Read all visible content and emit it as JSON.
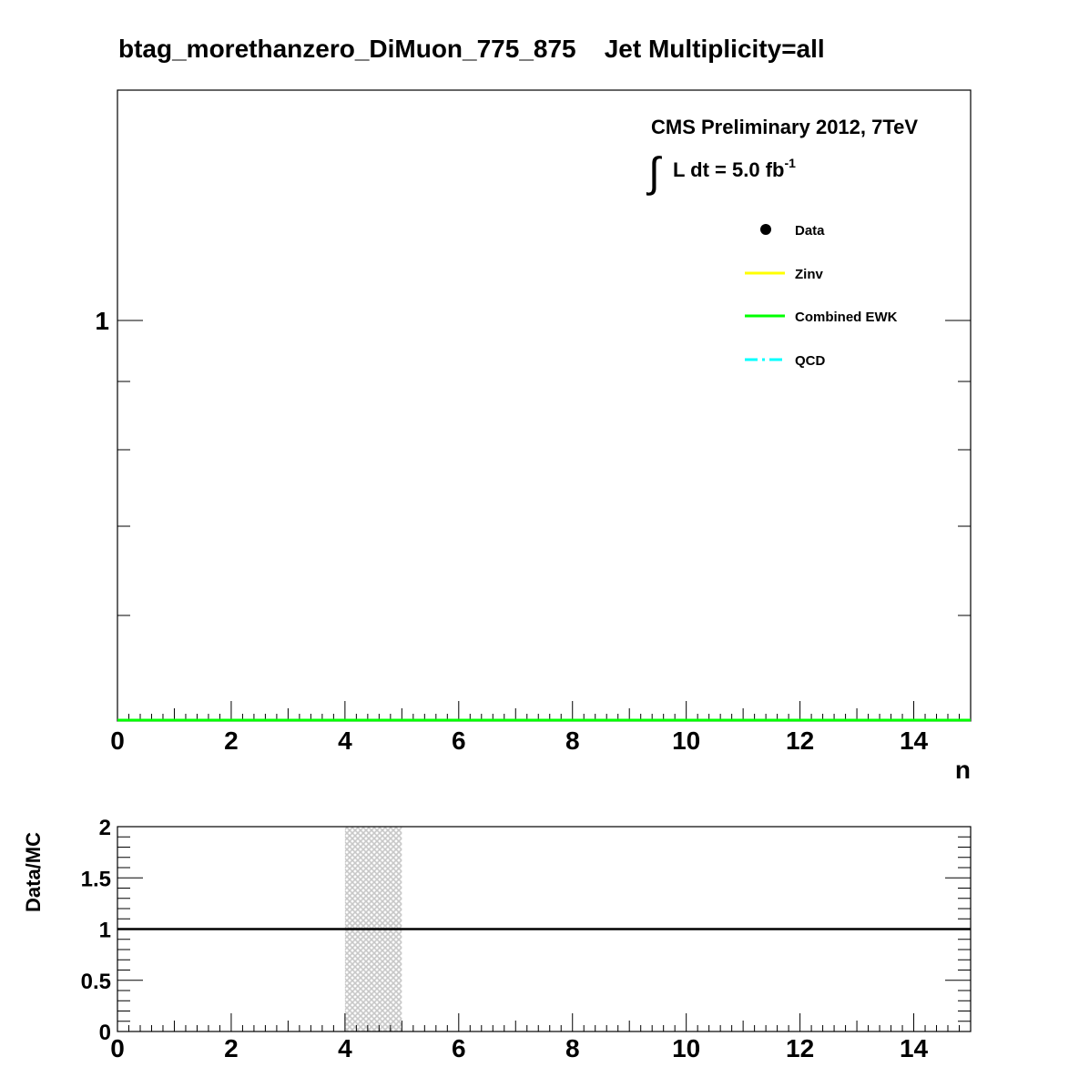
{
  "title": "btag_morethanzero_DiMuon_775_875    Jet Multiplicity=all",
  "annotation": {
    "line1": "CMS Preliminary 2012, 7TeV",
    "integral_sign": "∫",
    "lumi_prefix": "L dt = 5.0 fb",
    "lumi_superscript": "-1"
  },
  "legend": [
    {
      "label": "Data",
      "marker": "dot",
      "color": "#000000"
    },
    {
      "label": "Zinv",
      "marker": "line",
      "color": "#ffff00"
    },
    {
      "label": "Combined EWK",
      "marker": "line",
      "color": "#00ff00"
    },
    {
      "label": "QCD",
      "marker": "dashdot",
      "color": "#00ffff"
    }
  ],
  "chart_data": [
    {
      "type": "line",
      "panel": "main",
      "xlabel": "n",
      "ylabel": "",
      "xlim": [
        0,
        15
      ],
      "ylim_log_label": "1",
      "x_tick_labels": [
        "0",
        "2",
        "4",
        "6",
        "8",
        "10",
        "12",
        "14"
      ],
      "y_tick_labels": [
        "1"
      ],
      "series": [
        {
          "name": "Combined EWK",
          "color": "#00ff00",
          "x": [
            0,
            15
          ],
          "y": [
            0,
            0
          ]
        }
      ]
    },
    {
      "type": "line",
      "panel": "ratio",
      "xlabel": "",
      "ylabel": "Data/MC",
      "xlim": [
        0,
        15
      ],
      "ylim": [
        0,
        2
      ],
      "x_tick_labels": [
        "0",
        "2",
        "4",
        "6",
        "8",
        "10",
        "12",
        "14"
      ],
      "y_tick_labels": [
        "0",
        "0.5",
        "1",
        "1.5",
        "2"
      ],
      "reference_line": 1,
      "uncertainty_band": {
        "x_from": 4,
        "x_to": 5,
        "y_from": 0,
        "y_to": 2,
        "color": "#c8c8c8"
      }
    }
  ]
}
